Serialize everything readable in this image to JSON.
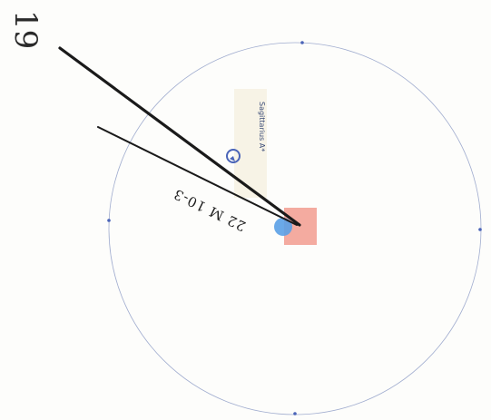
{
  "page": {
    "number": "19"
  },
  "diagram": {
    "dimension_label": "22 M 10-3",
    "caption_label": "Sagittarius A*",
    "colors": {
      "circle": "#4a5f9c",
      "marker": "#4a64b8",
      "center_square": "#f29c8f",
      "center_dot": "#5aa0e6",
      "lines": "#1a1a1a"
    },
    "icons": [
      "circle-arrow-icon"
    ]
  }
}
